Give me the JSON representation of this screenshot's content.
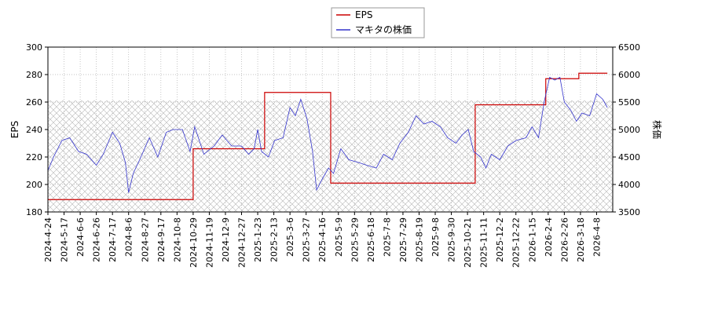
{
  "chart_data": {
    "type": "line",
    "ylabel_left": "EPS",
    "ylabel_right": "株価",
    "ylim_left": [
      180,
      300
    ],
    "ylim_right": [
      3500,
      6500
    ],
    "yticks_left": [
      "180",
      "200",
      "220",
      "240",
      "260",
      "280",
      "300"
    ],
    "yticks_right": [
      "3500",
      "4000",
      "4500",
      "5000",
      "5500",
      "6000",
      "6500"
    ],
    "grid": true,
    "legend_position": "top-center",
    "x_tick_labels": [
      "2024-4-24",
      "2024-5-17",
      "2024-6-6",
      "2024-6-26",
      "2024-7-17",
      "2024-8-6",
      "2024-8-27",
      "2024-9-17",
      "2024-10-8",
      "2024-10-29",
      "2024-11-19",
      "2024-12-9",
      "2024-12-27",
      "2025-1-23",
      "2025-2-13",
      "2025-3-6",
      "2025-3-27",
      "2025-4-16",
      "2025-5-9",
      "2025-5-29",
      "2025-6-18",
      "2025-7-8",
      "2025-7-29",
      "2025-8-19",
      "2025-9-8",
      "2025-9-30",
      "2025-10-21",
      "2025-11-11",
      "2025-12-2",
      "2025-12-22",
      "2026-1-15",
      "2026-2-4",
      "2026-2-26",
      "2026-3-18",
      "2026-4-8"
    ],
    "series": [
      {
        "name": "EPS",
        "axis": "left",
        "color": "#cc0000",
        "step_points": [
          [
            "2024-4-24",
            189
          ],
          [
            "2024-10-29",
            226
          ],
          [
            "2025-2-1",
            267
          ],
          [
            "2025-4-28",
            201
          ],
          [
            "2025-10-31",
            258
          ],
          [
            "2026-2-1",
            277
          ],
          [
            "2026-3-16",
            281
          ],
          [
            "2026-4-22",
            281
          ]
        ]
      },
      {
        "name": "マキタの株価",
        "axis": "right",
        "color": "#3333cc",
        "points": [
          [
            "2024-4-24",
            4250
          ],
          [
            "2024-5-2",
            4500
          ],
          [
            "2024-5-14",
            4800
          ],
          [
            "2024-5-24",
            4850
          ],
          [
            "2024-6-4",
            4600
          ],
          [
            "2024-6-14",
            4550
          ],
          [
            "2024-6-26",
            4350
          ],
          [
            "2024-7-5",
            4550
          ],
          [
            "2024-7-17",
            4950
          ],
          [
            "2024-7-26",
            4750
          ],
          [
            "2024-8-2",
            4400
          ],
          [
            "2024-8-6",
            3850
          ],
          [
            "2024-8-12",
            4200
          ],
          [
            "2024-8-22",
            4500
          ],
          [
            "2024-9-2",
            4850
          ],
          [
            "2024-9-13",
            4500
          ],
          [
            "2024-9-24",
            4950
          ],
          [
            "2024-10-3",
            5000
          ],
          [
            "2024-10-15",
            5000
          ],
          [
            "2024-10-25",
            4600
          ],
          [
            "2024-10-31",
            5050
          ],
          [
            "2024-11-12",
            4550
          ],
          [
            "2024-11-25",
            4700
          ],
          [
            "2024-12-5",
            4900
          ],
          [
            "2024-12-16",
            4700
          ],
          [
            "2024-12-27",
            4700
          ],
          [
            "2025-1-8",
            4550
          ],
          [
            "2025-1-17",
            4650
          ],
          [
            "2025-1-23",
            5000
          ],
          [
            "2025-1-28",
            4600
          ],
          [
            "2025-2-6",
            4500
          ],
          [
            "2025-2-14",
            4800
          ],
          [
            "2025-2-25",
            4850
          ],
          [
            "2025-3-6",
            5400
          ],
          [
            "2025-3-13",
            5250
          ],
          [
            "2025-3-20",
            5550
          ],
          [
            "2025-3-28",
            5200
          ],
          [
            "2025-4-4",
            4600
          ],
          [
            "2025-4-9",
            3900
          ],
          [
            "2025-4-16",
            4100
          ],
          [
            "2025-4-25",
            4300
          ],
          [
            "2025-5-2",
            4200
          ],
          [
            "2025-5-12",
            4650
          ],
          [
            "2025-5-22",
            4450
          ],
          [
            "2025-6-3",
            4400
          ],
          [
            "2025-6-13",
            4350
          ],
          [
            "2025-6-25",
            4300
          ],
          [
            "2025-7-4",
            4550
          ],
          [
            "2025-7-15",
            4450
          ],
          [
            "2025-7-25",
            4750
          ],
          [
            "2025-8-5",
            4950
          ],
          [
            "2025-8-15",
            5250
          ],
          [
            "2025-8-25",
            5100
          ],
          [
            "2025-9-4",
            5150
          ],
          [
            "2025-9-15",
            5050
          ],
          [
            "2025-9-25",
            4850
          ],
          [
            "2025-10-6",
            4750
          ],
          [
            "2025-10-14",
            4900
          ],
          [
            "2025-10-22",
            5000
          ],
          [
            "2025-10-29",
            4600
          ],
          [
            "2025-11-7",
            4500
          ],
          [
            "2025-11-14",
            4300
          ],
          [
            "2025-11-21",
            4550
          ],
          [
            "2025-12-2",
            4450
          ],
          [
            "2025-12-12",
            4700
          ],
          [
            "2025-12-22",
            4800
          ],
          [
            "2026-1-6",
            4850
          ],
          [
            "2026-1-15",
            5050
          ],
          [
            "2026-1-23",
            4850
          ],
          [
            "2026-1-30",
            5500
          ],
          [
            "2026-2-6",
            5950
          ],
          [
            "2026-2-13",
            5900
          ],
          [
            "2026-2-20",
            5950
          ],
          [
            "2026-2-26",
            5500
          ],
          [
            "2026-3-6",
            5350
          ],
          [
            "2026-3-13",
            5150
          ],
          [
            "2026-3-20",
            5300
          ],
          [
            "2026-3-30",
            5250
          ],
          [
            "2026-4-8",
            5650
          ],
          [
            "2026-4-16",
            5550
          ],
          [
            "2026-4-22",
            5400
          ]
        ]
      }
    ]
  }
}
